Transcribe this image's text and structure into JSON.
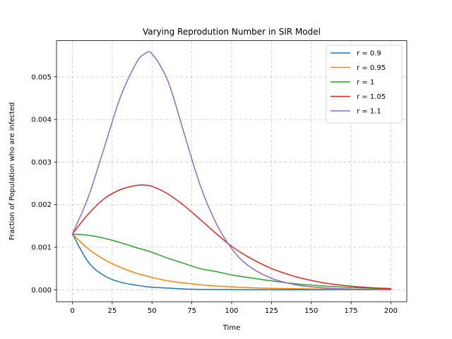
{
  "chart_data": {
    "type": "line",
    "title": "Varying Reprodution Number in SIR Model",
    "xlabel": "Time",
    "ylabel": "Fraction of Population who are infected",
    "xlim": [
      -10,
      210
    ],
    "ylim": [
      -0.00028,
      0.00585
    ],
    "xticks": [
      0,
      25,
      50,
      75,
      100,
      125,
      150,
      175,
      200
    ],
    "xtick_labels": [
      "0",
      "25",
      "50",
      "75",
      "100",
      "125",
      "150",
      "175",
      "200"
    ],
    "yticks": [
      0,
      0.001,
      0.002,
      0.003,
      0.004,
      0.005
    ],
    "ytick_labels": [
      "0.000",
      "0.001",
      "0.002",
      "0.003",
      "0.004",
      "0.005"
    ],
    "grid": true,
    "grid_style": "dashed",
    "legend_position": "top-right",
    "x": [
      0,
      10,
      20,
      30,
      40,
      45,
      50,
      60,
      70,
      80,
      90,
      100,
      110,
      125,
      140,
      150,
      160,
      175,
      190,
      200
    ],
    "series": [
      {
        "name": "r = 0.9",
        "color": "#1f77b4",
        "values": [
          0.00131,
          0.00065,
          0.00033,
          0.00018,
          0.00011,
          8e-05,
          6e-05,
          4e-05,
          2e-05,
          1e-05,
          8e-06,
          5e-06,
          3e-06,
          2e-06,
          1e-06,
          1e-06,
          5e-07,
          2e-07,
          1e-07,
          0.0
        ]
      },
      {
        "name": "r = 0.95",
        "color": "#ff7f0e",
        "values": [
          0.00131,
          0.00096,
          0.00071,
          0.00053,
          0.00039,
          0.00034,
          0.00029,
          0.00021,
          0.00016,
          0.00012,
          9e-05,
          7e-05,
          5e-05,
          3.5e-05,
          2.5e-05,
          2e-05,
          1.5e-05,
          1e-05,
          6e-06,
          5e-06
        ]
      },
      {
        "name": "r = 1",
        "color": "#2ca02c",
        "values": [
          0.00131,
          0.00128,
          0.00121,
          0.00111,
          0.00099,
          0.00094,
          0.00088,
          0.00074,
          0.00062,
          0.0005,
          0.00043,
          0.00035,
          0.00029,
          0.00021,
          0.00014,
          0.00011,
          8.5e-05,
          5.5e-05,
          3.5e-05,
          2.5e-05
        ]
      },
      {
        "name": "r = 1.05",
        "color": "#d62728",
        "values": [
          0.00131,
          0.00178,
          0.00214,
          0.00235,
          0.00245,
          0.00246,
          0.00243,
          0.00225,
          0.00198,
          0.00166,
          0.00133,
          0.00102,
          0.00078,
          0.0005,
          0.00031,
          0.00022,
          0.00015,
          8.5e-05,
          4.5e-05,
          3e-05
        ]
      },
      {
        "name": "r = 1.1",
        "color": "#9467bd",
        "values": [
          0.00131,
          0.00218,
          0.00334,
          0.00451,
          0.00532,
          0.00553,
          0.00554,
          0.0049,
          0.00369,
          0.00248,
          0.00158,
          0.00097,
          0.00058,
          0.00027,
          0.00012,
          7e-05,
          4e-05,
          1.8e-05,
          8e-06,
          5e-06
        ]
      }
    ]
  }
}
